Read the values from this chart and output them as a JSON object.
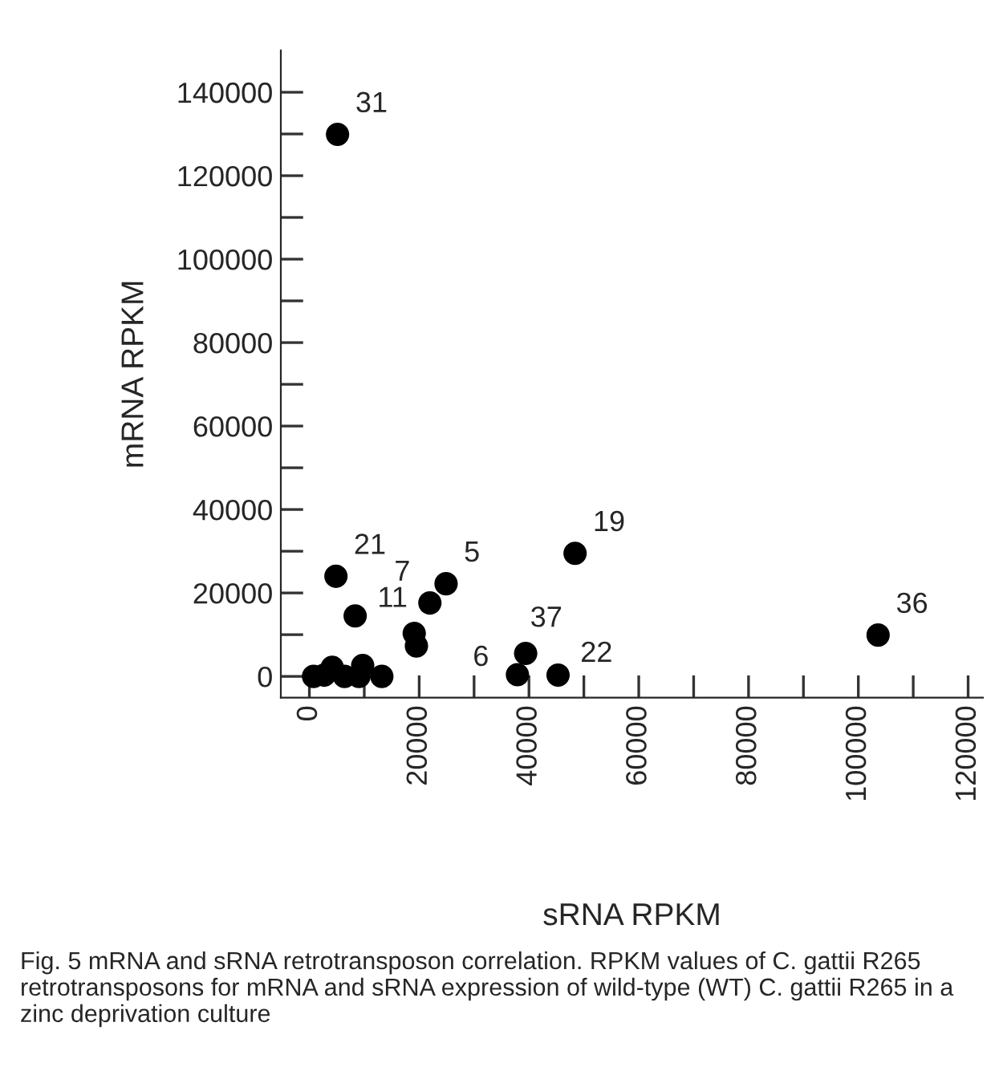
{
  "chart_data": {
    "type": "scatter",
    "xlabel": "sRNA RPKM",
    "ylabel": "mRNA RPKM",
    "series": [
      {
        "color": "#000000",
        "x": [
          5130,
          4840,
          8340,
          21950,
          24900,
          19100,
          19500,
          48400,
          39400,
          37900,
          45300,
          103600,
          760,
          2700,
          4160,
          6400,
          9030,
          9710,
          13200
        ],
        "values": [
          129900,
          24000,
          14500,
          17600,
          22200,
          10300,
          7300,
          29500,
          5500,
          400,
          300,
          9900,
          0,
          300,
          2200,
          0,
          0,
          2600,
          0
        ]
      }
    ],
    "annotations": [
      {
        "text": "31",
        "x": 5130,
        "y": 129900
      },
      {
        "text": "21",
        "x": 4840,
        "y": 24000
      },
      {
        "text": "11",
        "x": 8340,
        "y": 14500
      },
      {
        "text": "7",
        "x": 21950,
        "y": 17600
      },
      {
        "text": "5",
        "x": 24900,
        "y": 22200
      },
      {
        "text": "19",
        "x": 48400,
        "y": 29500
      },
      {
        "text": "37",
        "x": 39400,
        "y": 5500
      },
      {
        "text": "6",
        "x": 37900,
        "y": 400
      },
      {
        "text": "22",
        "x": 45300,
        "y": 300
      },
      {
        "text": "36",
        "x": 103600,
        "y": 9900
      },
      "Fig. 5 mRNA and sRNA retrotransposon correlation. RPKM values of C. gattii R265 retrotransposons for mRNA and sRNA expression of wild-type (WT) C. gattii R265 in a zinc deprivation culture"
    ],
    "xlim": [
      -5200,
      122700
    ],
    "ylim": [
      -5100,
      150000
    ],
    "xticks": [
      0,
      {
        "value": 10000,
        "label": null
      },
      20000,
      {
        "value": 30000,
        "label": null
      },
      40000,
      {
        "value": 50000,
        "label": null
      },
      60000,
      {
        "value": 70000,
        "label": null
      },
      80000,
      {
        "value": 90000,
        "label": null
      },
      100000,
      {
        "value": 110000,
        "label": null
      },
      120000
    ],
    "yticks": [
      0,
      {
        "value": 10000,
        "label": null
      },
      20000,
      {
        "value": 30000,
        "label": null
      },
      40000,
      {
        "value": 50000,
        "label": null
      },
      60000,
      {
        "value": 70000,
        "label": null
      },
      80000,
      {
        "value": 90000,
        "label": null
      },
      100000,
      {
        "value": 110000,
        "label": null
      },
      120000,
      {
        "value": 130000,
        "label": null
      },
      140000
    ],
    "marker": "circle",
    "grid": false,
    "legend": false
  }
}
